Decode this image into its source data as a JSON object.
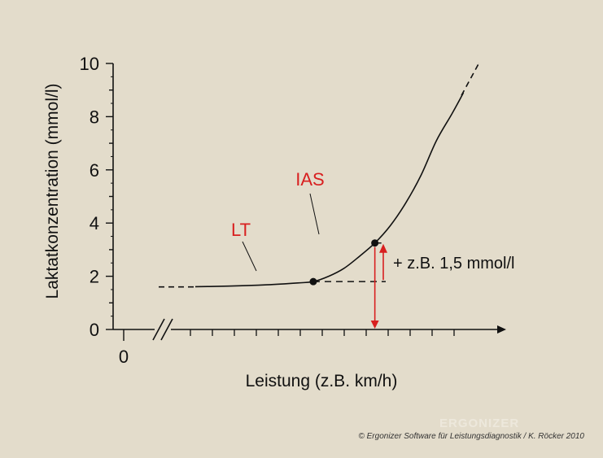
{
  "chart_data": {
    "type": "line",
    "ylabel": "Laktatkonzentration (mmol/l)",
    "xlabel": "Leistung (z.B. km/h)",
    "ylim": [
      0,
      10
    ],
    "yticks": [
      "0",
      "2",
      "4",
      "6",
      "8",
      "10"
    ],
    "xticks": [
      "0"
    ],
    "grid": false,
    "series": [
      {
        "values": [
          {
            "x": 0.18,
            "y": 1.6
          },
          {
            "x": 0.3,
            "y": 1.63
          },
          {
            "x": 0.4,
            "y": 1.68
          },
          {
            "x": 0.48,
            "y": 1.75
          },
          {
            "x": 0.52,
            "y": 1.8
          },
          {
            "x": 0.56,
            "y": 2.0
          },
          {
            "x": 0.6,
            "y": 2.3
          },
          {
            "x": 0.64,
            "y": 2.75
          },
          {
            "x": 0.68,
            "y": 3.25
          },
          {
            "x": 0.72,
            "y": 3.9
          },
          {
            "x": 0.76,
            "y": 4.75
          },
          {
            "x": 0.8,
            "y": 5.8
          },
          {
            "x": 0.84,
            "y": 7.1
          },
          {
            "x": 0.88,
            "y": 8.1
          },
          {
            "x": 0.91,
            "y": 8.9
          },
          {
            "x": 0.93,
            "y": 9.5
          },
          {
            "x": 0.95,
            "y": 10.0
          }
        ]
      }
    ],
    "points": [
      {
        "label": "LT",
        "x": 0.52,
        "y": 1.8
      },
      {
        "label": "IAS",
        "x": 0.68,
        "y": 3.25
      }
    ],
    "annotation": "+ z.B. 1,5 mmol/l"
  },
  "footer": {
    "copyright": "© Ergonizer Software für Leistungsdiagnostik / K. Röcker 2010",
    "watermark": "ERGONIZER"
  }
}
